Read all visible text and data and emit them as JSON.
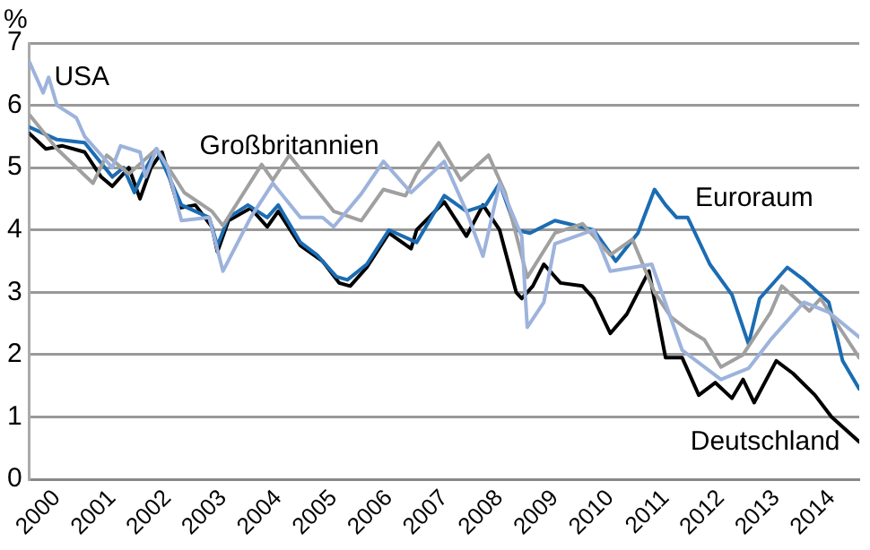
{
  "chart_data": {
    "type": "line",
    "ylabel": "%",
    "xlim": [
      2000,
      2015
    ],
    "xticks": [
      {
        "value": 2000.5,
        "label": "2000"
      },
      {
        "value": 2001.5,
        "label": "2001"
      },
      {
        "value": 2002.5,
        "label": "2002"
      },
      {
        "value": 2003.5,
        "label": "2003"
      },
      {
        "value": 2004.5,
        "label": "2004"
      },
      {
        "value": 2005.5,
        "label": "2005"
      },
      {
        "value": 2006.5,
        "label": "2006"
      },
      {
        "value": 2007.5,
        "label": "2007"
      },
      {
        "value": 2008.5,
        "label": "2008"
      },
      {
        "value": 2009.5,
        "label": "2009"
      },
      {
        "value": 2010.5,
        "label": "2010"
      },
      {
        "value": 2011.5,
        "label": "2011"
      },
      {
        "value": 2012.5,
        "label": "2012"
      },
      {
        "value": 2013.5,
        "label": "2013"
      },
      {
        "value": 2014.5,
        "label": "2014"
      }
    ],
    "ylim": [
      0,
      7
    ],
    "yticks": [
      0,
      1,
      2,
      3,
      4,
      5,
      6,
      7
    ],
    "grid": "y",
    "legend": false,
    "marker": "none",
    "line_style": "solid",
    "series": [
      {
        "name": "USA",
        "color": "#9db3dc",
        "x": [
          2000.0,
          2000.25,
          2000.35,
          2000.5,
          2000.85,
          2001.0,
          2001.3,
          2001.5,
          2001.65,
          2002.0,
          2002.1,
          2002.3,
          2002.5,
          2002.75,
          2003.25,
          2003.5,
          2004.0,
          2004.4,
          2004.9,
          2005.3,
          2005.5,
          2006.0,
          2006.4,
          2006.9,
          2007.5,
          2007.9,
          2008.2,
          2008.5,
          2008.9,
          2009.0,
          2009.3,
          2009.5,
          2010.2,
          2010.5,
          2011.25,
          2011.8,
          2012.5,
          2013.0,
          2013.4,
          2014.0,
          2014.45,
          2015.0
        ],
        "values": [
          6.7,
          6.2,
          6.45,
          6.0,
          5.8,
          5.5,
          5.2,
          5.0,
          5.35,
          5.25,
          4.85,
          5.3,
          5.0,
          4.15,
          4.2,
          3.34,
          4.2,
          4.75,
          4.2,
          4.2,
          4.05,
          4.58,
          5.1,
          4.6,
          5.1,
          4.3,
          3.58,
          4.75,
          3.9,
          2.44,
          2.84,
          3.78,
          4.0,
          3.34,
          3.45,
          2.07,
          1.6,
          1.78,
          2.24,
          2.84,
          2.68,
          2.28
        ]
      },
      {
        "name": "Großbritannien",
        "color": "#a0a0a0",
        "x": [
          2000.0,
          2000.5,
          2001.15,
          2001.4,
          2001.8,
          2002.3,
          2002.8,
          2003.3,
          2003.5,
          2004.2,
          2004.4,
          2004.7,
          2005.1,
          2005.5,
          2006.0,
          2006.4,
          2006.8,
          2007.0,
          2007.4,
          2007.8,
          2008.3,
          2008.6,
          2009.0,
          2009.5,
          2010.0,
          2010.5,
          2010.9,
          2011.3,
          2011.6,
          2011.9,
          2012.2,
          2012.5,
          2012.9,
          2013.4,
          2013.6,
          2014.1,
          2014.3,
          2015.0
        ],
        "values": [
          5.85,
          5.3,
          4.75,
          5.2,
          4.9,
          5.3,
          4.6,
          4.3,
          4.07,
          5.05,
          4.8,
          5.2,
          4.75,
          4.3,
          4.15,
          4.65,
          4.55,
          4.9,
          5.4,
          4.8,
          5.2,
          4.6,
          3.24,
          3.95,
          4.1,
          3.6,
          3.85,
          3.0,
          2.6,
          2.4,
          2.24,
          1.8,
          2.0,
          2.68,
          3.1,
          2.7,
          2.9,
          1.95
        ]
      },
      {
        "name": "Euroraum",
        "color": "#1b6cb3",
        "x": [
          2000.0,
          2000.5,
          2001.0,
          2001.5,
          2001.7,
          2001.9,
          2002.05,
          2002.3,
          2002.75,
          2003.25,
          2003.4,
          2003.6,
          2003.95,
          2004.3,
          2004.5,
          2004.9,
          2005.2,
          2005.55,
          2005.75,
          2006.1,
          2006.5,
          2007.0,
          2007.5,
          2007.9,
          2008.25,
          2008.5,
          2008.8,
          2009.05,
          2009.5,
          2010.2,
          2010.6,
          2011.0,
          2011.3,
          2011.5,
          2011.7,
          2011.9,
          2012.3,
          2012.7,
          2013.0,
          2013.2,
          2013.7,
          2014.0,
          2014.45,
          2014.7,
          2015.0
        ],
        "values": [
          5.65,
          5.45,
          5.4,
          4.85,
          5.0,
          4.6,
          4.9,
          5.3,
          4.4,
          4.2,
          3.75,
          4.2,
          4.4,
          4.2,
          4.4,
          3.8,
          3.6,
          3.25,
          3.2,
          3.45,
          4.0,
          3.8,
          4.55,
          4.3,
          4.4,
          4.75,
          4.0,
          3.95,
          4.15,
          4.0,
          3.5,
          3.95,
          4.65,
          4.4,
          4.2,
          4.2,
          3.45,
          2.96,
          2.17,
          2.9,
          3.4,
          3.2,
          2.84,
          1.9,
          1.45
        ]
      },
      {
        "name": "Deutschland",
        "color": "#000000",
        "x": [
          2000.0,
          2000.3,
          2000.6,
          2001.0,
          2001.3,
          2001.5,
          2001.8,
          2002.0,
          2002.2,
          2002.4,
          2002.7,
          2003.0,
          2003.3,
          2003.4,
          2003.6,
          2004.0,
          2004.3,
          2004.5,
          2004.9,
          2005.3,
          2005.6,
          2005.8,
          2006.1,
          2006.5,
          2006.9,
          2007.0,
          2007.5,
          2007.9,
          2008.2,
          2008.5,
          2008.8,
          2008.9,
          2009.1,
          2009.3,
          2009.6,
          2010.0,
          2010.2,
          2010.5,
          2010.8,
          2011.2,
          2011.5,
          2011.8,
          2012.1,
          2012.4,
          2012.7,
          2012.9,
          2013.1,
          2013.5,
          2013.8,
          2014.2,
          2014.5,
          2015.0
        ],
        "values": [
          5.55,
          5.3,
          5.35,
          5.25,
          4.85,
          4.7,
          5.0,
          4.5,
          5.0,
          5.25,
          4.35,
          4.4,
          4.05,
          3.65,
          4.15,
          4.35,
          4.05,
          4.3,
          3.75,
          3.5,
          3.15,
          3.1,
          3.4,
          3.95,
          3.7,
          4.0,
          4.45,
          3.9,
          4.4,
          4.0,
          3.0,
          2.9,
          3.1,
          3.45,
          3.15,
          3.1,
          2.9,
          2.34,
          2.65,
          3.34,
          1.95,
          1.95,
          1.35,
          1.55,
          1.3,
          1.6,
          1.23,
          1.9,
          1.7,
          1.35,
          1.0,
          0.6
        ]
      }
    ]
  }
}
